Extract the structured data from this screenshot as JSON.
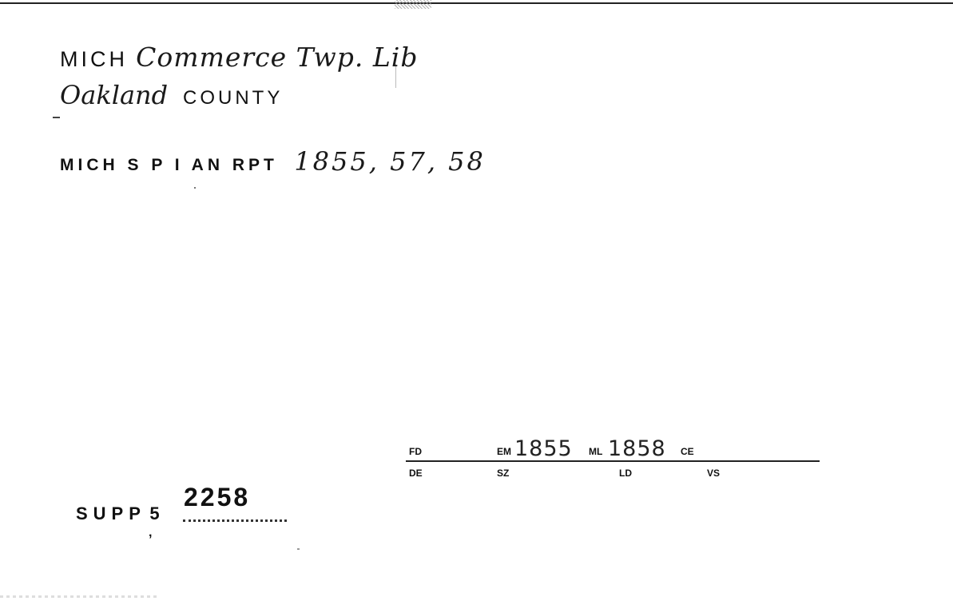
{
  "card": {
    "line1": {
      "state": "MICH",
      "library": "Commerce Twp. Lib"
    },
    "line2": {
      "county_name": "Oakland",
      "county_label": "COUNTY"
    },
    "line3": {
      "report_label": "MICH S P I AN RPT",
      "report_years": "1855, 57, 58"
    },
    "form": {
      "fd_label": "FD",
      "em_label": "EM",
      "em_value": "1855",
      "ml_label": "ML",
      "ml_value": "1858",
      "ce_label": "CE",
      "de_label": "DE",
      "sz_label": "SZ",
      "ld_label": "LD",
      "vs_label": "VS"
    },
    "supplement": {
      "label": "SUPP",
      "volume": "5",
      "number": "2258"
    }
  }
}
